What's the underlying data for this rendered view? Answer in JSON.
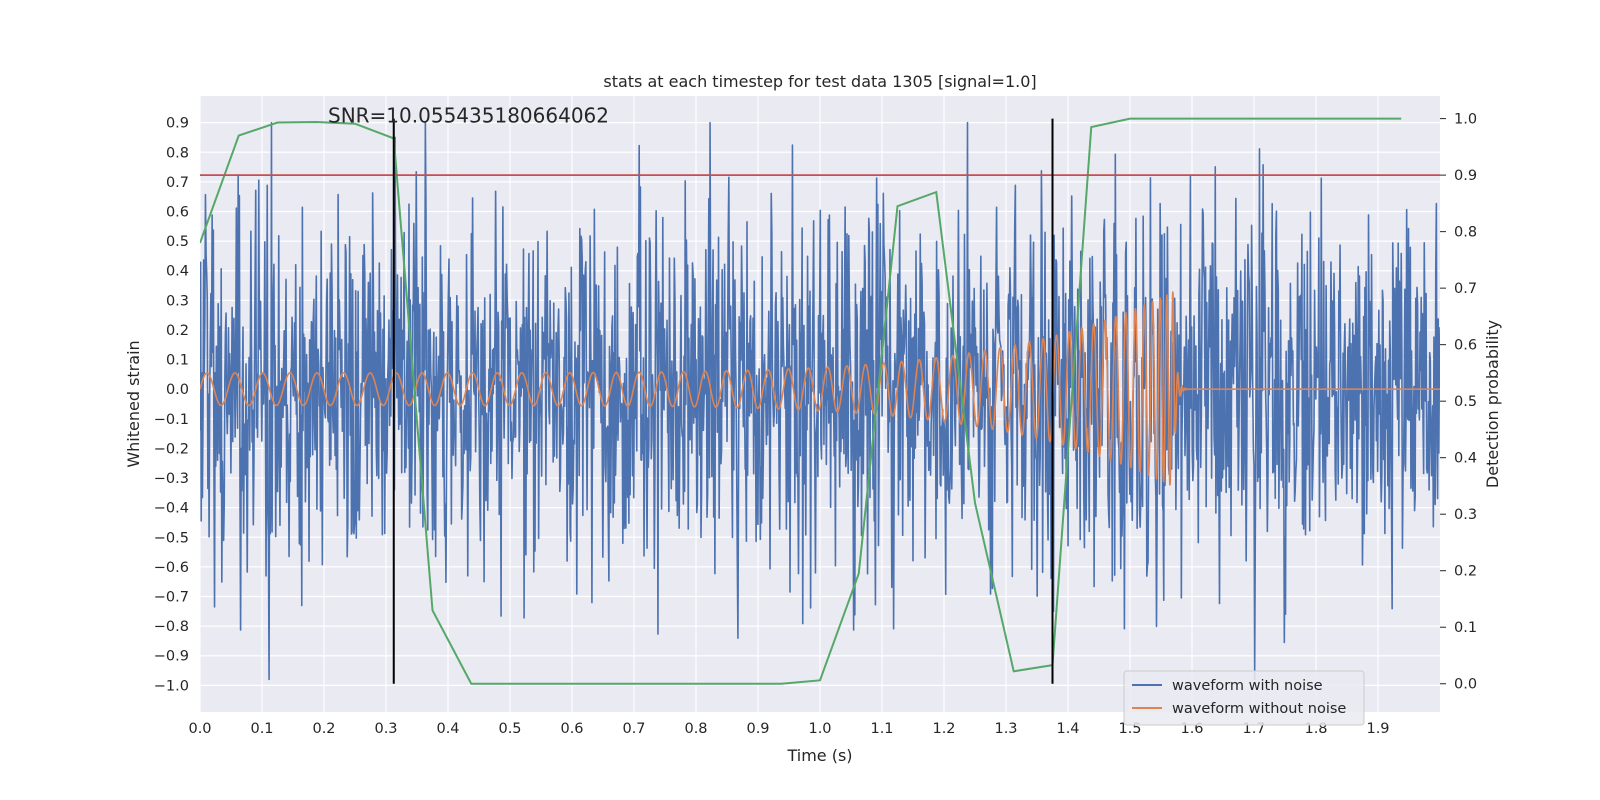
{
  "chart_data": {
    "type": "line",
    "title": "stats at each timestep for test data 1305 [signal=1.0]",
    "xlabel": "Time (s)",
    "ylabel": "Whitened strain",
    "y2label": "Detection probability",
    "xlim": [
      0.0,
      2.0
    ],
    "ylim": [
      -1.09,
      0.99
    ],
    "y2lim": [
      -0.05,
      1.04
    ],
    "grid": true,
    "x_ticks": [
      0.0,
      0.1,
      0.2,
      0.3,
      0.4,
      0.5,
      0.6,
      0.7,
      0.8,
      0.9,
      1.0,
      1.1,
      1.2,
      1.3,
      1.4,
      1.5,
      1.6,
      1.7,
      1.8,
      1.9
    ],
    "x_tick_labels": [
      "0.0",
      "0.1",
      "0.2",
      "0.3",
      "0.4",
      "0.5",
      "0.6",
      "0.7",
      "0.8",
      "0.9",
      "1.0",
      "1.1",
      "1.2",
      "1.3",
      "1.4",
      "1.5",
      "1.6",
      "1.7",
      "1.8",
      "1.9"
    ],
    "y_ticks": [
      0.9,
      0.8,
      0.7,
      0.6,
      0.5,
      0.4,
      0.3,
      0.2,
      0.1,
      0.0,
      -0.1,
      -0.2,
      -0.3,
      -0.4,
      -0.5,
      -0.6,
      -0.7,
      -0.8,
      -0.9,
      -1.0
    ],
    "y_tick_labels": [
      "0.9",
      "0.8",
      "0.7",
      "0.6",
      "0.5",
      "0.4",
      "0.3",
      "0.2",
      "0.1",
      "0.0",
      "−0.1",
      "−0.2",
      "−0.3",
      "−0.4",
      "−0.5",
      "−0.6",
      "−0.7",
      "−0.8",
      "−0.9",
      "−1.0"
    ],
    "y2_ticks": [
      1.0,
      0.9,
      0.8,
      0.7,
      0.6,
      0.5,
      0.4,
      0.3,
      0.2,
      0.1,
      0.0
    ],
    "y2_tick_labels": [
      "1.0",
      "0.9",
      "0.8",
      "0.7",
      "0.6",
      "0.5",
      "0.4",
      "0.3",
      "0.2",
      "0.1",
      "0.0"
    ],
    "annotation": "SNR=10.055435180664062",
    "annotation_at": {
      "x": 0.2,
      "y": 0.9
    },
    "series": [
      {
        "name": "waveform with noise",
        "color": "#4c72b0",
        "axis": "left",
        "kind": "noise",
        "t_range": [
          0.0,
          2.0
        ],
        "n_points": 2048,
        "mean": 0.0,
        "std": 0.3,
        "peak_range": [
          -0.98,
          0.9
        ]
      },
      {
        "name": "waveform without noise",
        "color": "#dd8452",
        "axis": "left",
        "kind": "chirp",
        "t_range": [
          0.0,
          2.0
        ],
        "merger_time": 1.57,
        "start_freq_hz": 22,
        "merger_freq_hz": 260,
        "amp_start": 0.055,
        "amp_merger": 0.33
      },
      {
        "name": "detection probability",
        "color": "#55a868",
        "axis": "right",
        "x": [
          0.0,
          0.0625,
          0.125,
          0.1875,
          0.25,
          0.3125,
          0.375,
          0.4375,
          0.5,
          0.5625,
          0.625,
          0.6875,
          0.75,
          0.8125,
          0.875,
          0.9375,
          1.0,
          1.0625,
          1.125,
          1.1875,
          1.25,
          1.3125,
          1.375,
          1.4375,
          1.5,
          1.5625,
          1.625,
          1.6875,
          1.75,
          1.8125,
          1.875,
          1.9375
        ],
        "y": [
          0.78,
          0.97,
          0.993,
          0.994,
          0.991,
          0.965,
          0.13,
          0.0,
          0.0,
          0.0,
          0.0,
          0.0,
          0.0,
          0.0,
          0.0,
          0.0,
          0.006,
          0.195,
          0.845,
          0.87,
          0.32,
          0.022,
          0.033,
          0.985,
          1.0,
          1.0,
          1.0,
          1.0,
          1.0,
          1.0,
          1.0,
          1.0
        ]
      }
    ],
    "threshold": {
      "name": "threshold",
      "color": "#c44e52",
      "axis": "right",
      "value": 0.9
    },
    "vlines": [
      {
        "x": 0.3125,
        "color": "#000000",
        "y2_range": [
          0.0,
          1.0
        ]
      },
      {
        "x": 1.375,
        "color": "#000000",
        "y2_range": [
          0.0,
          1.0
        ]
      }
    ],
    "legend": {
      "location": "lower-right",
      "entries": [
        "waveform with noise",
        "waveform without noise"
      ]
    }
  }
}
